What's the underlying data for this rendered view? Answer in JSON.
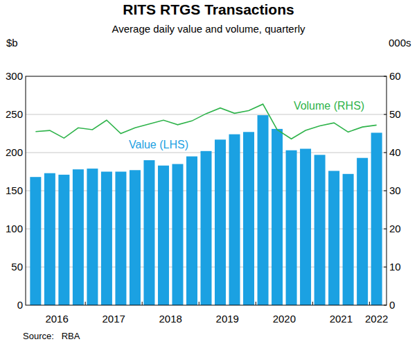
{
  "chart_data": {
    "type": "bar",
    "title": "RITS RTGS Transactions",
    "subtitle": "Average daily value and volume, quarterly",
    "y_label": "$b",
    "y2_label": "000s",
    "source": "Source:   RBA",
    "categories": [
      "2016",
      null,
      null,
      null,
      "2017",
      null,
      null,
      null,
      "2018",
      null,
      null,
      null,
      "2019",
      null,
      null,
      null,
      "2020",
      null,
      null,
      null,
      "2021",
      null,
      null,
      null,
      "2022"
    ],
    "series": [
      {
        "name": "Value (LHS)",
        "type": "bar",
        "color": "#1ba1e2",
        "values": [
          168,
          173,
          171,
          178,
          179,
          175,
          175,
          177,
          190,
          183,
          185,
          195,
          202,
          217,
          224,
          227,
          249,
          231,
          203,
          205,
          197,
          176,
          172,
          193,
          226
        ]
      },
      {
        "name": "Volume (RHS)",
        "type": "line",
        "color": "#2eb34a",
        "axis": "y2",
        "values": [
          45.5,
          45.8,
          43.8,
          46.5,
          46.0,
          48.5,
          45.0,
          46.5,
          47.5,
          48.5,
          47.3,
          48.3,
          50.2,
          51.7,
          50.3,
          51.0,
          52.7,
          46.0,
          43.6,
          45.8,
          47.0,
          47.8,
          45.4,
          46.7,
          47.2
        ]
      }
    ],
    "ylim": [
      0,
      300
    ],
    "yticks": [
      0,
      50,
      100,
      150,
      200,
      250,
      300
    ],
    "y2lim": [
      0,
      60
    ],
    "y2ticks": [
      0,
      10,
      20,
      30,
      40,
      50,
      60
    ],
    "grid": true
  }
}
